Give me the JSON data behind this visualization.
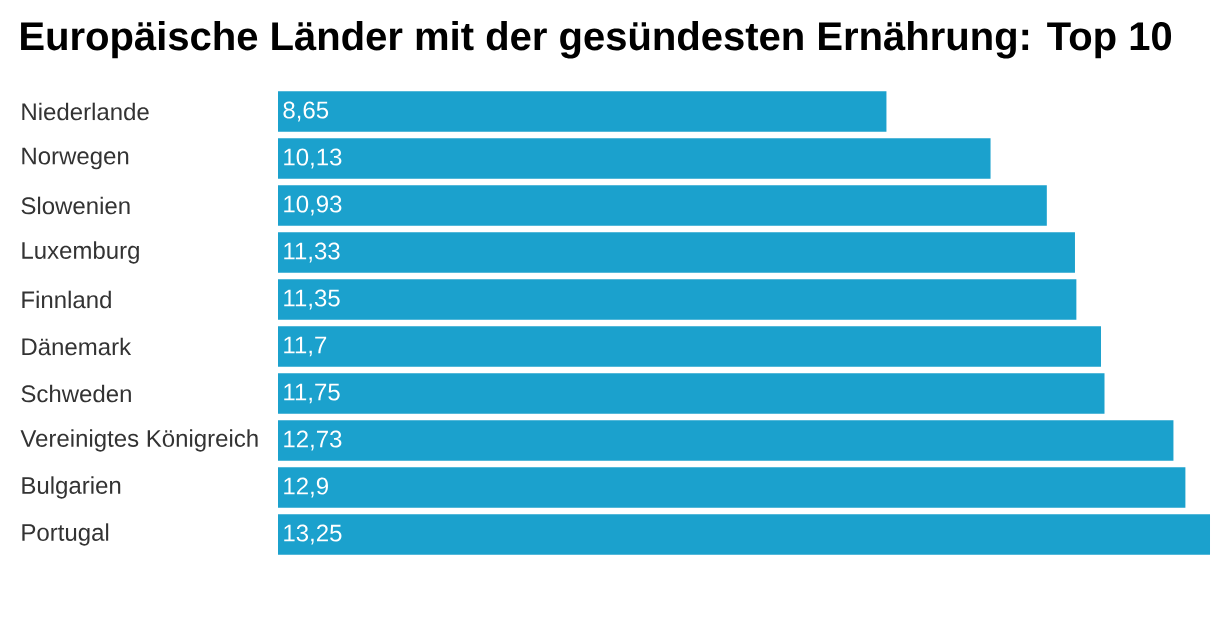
{
  "chart_data": {
    "type": "bar",
    "orientation": "horizontal",
    "title": "Europäische Länder mit der gesündesten Ernährung: Top 10",
    "categories": [
      "Niederlande",
      "Norwegen",
      "Slowenien",
      "Luxemburg",
      "Finnland",
      "Dänemark",
      "Schweden",
      "Vereinigtes Königreich",
      "Bulgarien",
      "Portugal"
    ],
    "values": [
      8.65,
      10.13,
      10.93,
      11.33,
      11.35,
      11.7,
      11.75,
      12.73,
      12.9,
      13.25
    ],
    "value_labels": [
      "8,65",
      "10,13",
      "10,93",
      "11,33",
      "11,35",
      "11,7",
      "11,75",
      "12,73",
      "12,9",
      "13,25"
    ],
    "color": "#1ba1cd"
  }
}
